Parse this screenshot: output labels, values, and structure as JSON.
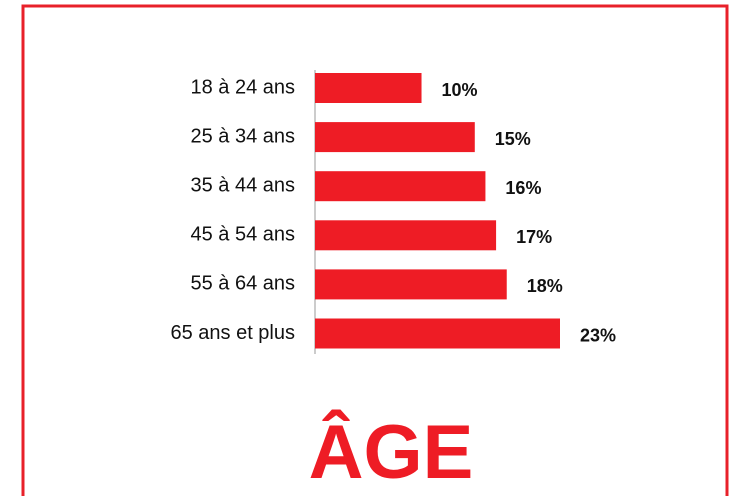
{
  "chart_data": {
    "type": "bar",
    "orientation": "horizontal",
    "title": "ÂGE",
    "color": "#ee1c25",
    "categories": [
      "18 à 24 ans",
      "25 à 34 ans",
      "35 à 44 ans",
      "45 à 54 ans",
      "55 à 64 ans",
      "65 ans et plus"
    ],
    "values": [
      10,
      15,
      16,
      17,
      18,
      23
    ],
    "value_labels": [
      "10%",
      "15%",
      "16%",
      "17%",
      "18%",
      "23%"
    ]
  }
}
